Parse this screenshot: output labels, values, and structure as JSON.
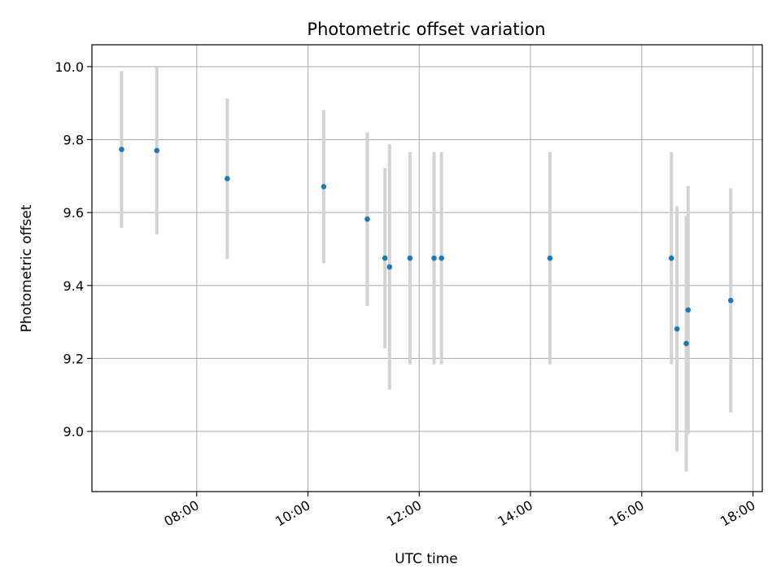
{
  "chart_data": {
    "type": "scatter",
    "title": "Photometric offset variation",
    "xlabel": "UTC time",
    "ylabel": "Photometric offset",
    "grid": true,
    "x_ticks": [
      "08:00",
      "10:00",
      "12:00",
      "14:00",
      "16:00",
      "18:00"
    ],
    "y_ticks": [
      "9.0",
      "9.2",
      "9.4",
      "9.6",
      "9.8",
      "10.0"
    ],
    "xlim": [
      "06:07",
      "18:10"
    ],
    "ylim": [
      8.835,
      10.06
    ],
    "colors": {
      "points": "#1f77b4",
      "errorbars": "#d3d3d3",
      "grid": "#b0b0b0"
    },
    "points": [
      {
        "x": "06:39",
        "y": 9.773,
        "err": 0.215
      },
      {
        "x": "07:17",
        "y": 9.77,
        "err": 0.23
      },
      {
        "x": "08:33",
        "y": 9.693,
        "err": 0.22
      },
      {
        "x": "10:17",
        "y": 9.671,
        "err": 0.21
      },
      {
        "x": "11:04",
        "y": 9.582,
        "err": 0.238
      },
      {
        "x": "11:23",
        "y": 9.475,
        "err": 0.247
      },
      {
        "x": "11:28",
        "y": 9.451,
        "err": 0.336
      },
      {
        "x": "11:50",
        "y": 9.475,
        "err": 0.291
      },
      {
        "x": "12:16",
        "y": 9.475,
        "err": 0.291
      },
      {
        "x": "12:24",
        "y": 9.475,
        "err": 0.291
      },
      {
        "x": "14:21",
        "y": 9.475,
        "err": 0.291
      },
      {
        "x": "16:32",
        "y": 9.475,
        "err": 0.291
      },
      {
        "x": "16:38",
        "y": 9.281,
        "err": 0.336
      },
      {
        "x": "16:48",
        "y": 9.241,
        "err": 0.351
      },
      {
        "x": "16:50",
        "y": 9.333,
        "err": 0.34
      },
      {
        "x": "17:36",
        "y": 9.359,
        "err": 0.307
      }
    ]
  }
}
